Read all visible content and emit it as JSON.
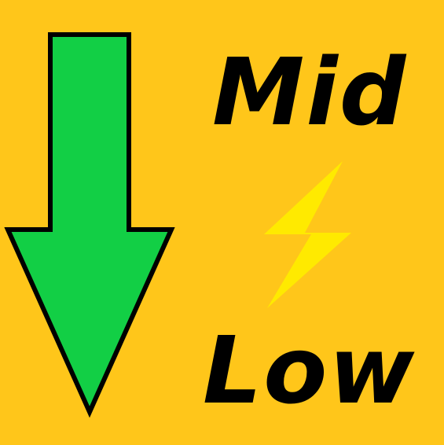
{
  "labels": {
    "top": "Mid",
    "bottom": "Low"
  },
  "icons": {
    "arrow": "down-arrow-icon",
    "bolt": "lightning-bolt-icon"
  },
  "colors": {
    "background": "#FFC61A",
    "arrow_fill": "#12CF45",
    "arrow_stroke": "#000000",
    "bolt": "#FFEA00",
    "text": "#000000"
  }
}
